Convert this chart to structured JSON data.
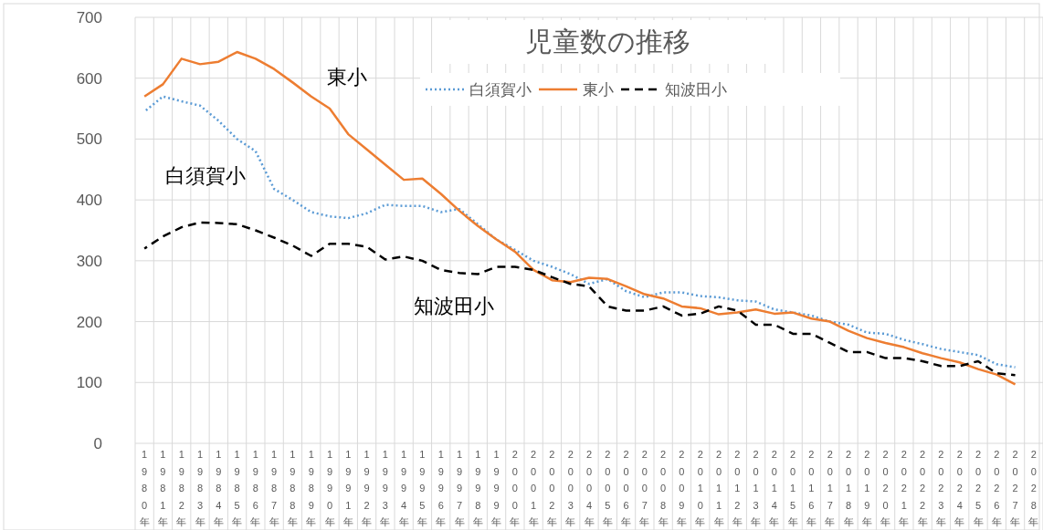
{
  "chart_data": {
    "type": "line",
    "title": "児童数の推移",
    "categories": [
      "1980年",
      "1981年",
      "1982年",
      "1983年",
      "1984年",
      "1985年",
      "1986年",
      "1987年",
      "1988年",
      "1989年",
      "1990年",
      "1991年",
      "1992年",
      "1993年",
      "1994年",
      "1995年",
      "1996年",
      "1997年",
      "1998年",
      "1999年",
      "2000年",
      "2001年",
      "2002年",
      "2003年",
      "2004年",
      "2005年",
      "2006年",
      "2007年",
      "2008年",
      "2009年",
      "2010年",
      "2011年",
      "2012年",
      "2013年",
      "2014年",
      "2015年",
      "2016年",
      "2017年",
      "2018年",
      "2019年",
      "2020年",
      "2021年",
      "2022年",
      "2023年",
      "2024年",
      "2025年",
      "2026年",
      "2027年",
      "2028年"
    ],
    "series": [
      {
        "name": "白須賀小",
        "color": "#5b9bd5",
        "line_style": "dotted",
        "values": [
          545,
          570,
          562,
          555,
          530,
          500,
          480,
          418,
          400,
          380,
          373,
          370,
          378,
          392,
          390,
          390,
          380,
          385,
          360,
          335,
          318,
          300,
          290,
          278,
          262,
          270,
          250,
          240,
          248,
          248,
          242,
          240,
          235,
          233,
          220,
          215,
          210,
          200,
          195,
          182,
          180,
          170,
          163,
          155,
          150,
          145,
          130,
          125,
          null
        ]
      },
      {
        "name": "東小",
        "color": "#ed7d31",
        "line_style": "solid",
        "values": [
          570,
          590,
          632,
          623,
          627,
          643,
          632,
          615,
          593,
          570,
          550,
          508,
          483,
          458,
          433,
          435,
          410,
          382,
          357,
          335,
          315,
          285,
          268,
          265,
          272,
          270,
          258,
          245,
          238,
          225,
          222,
          212,
          215,
          220,
          213,
          215,
          205,
          200,
          185,
          173,
          165,
          158,
          148,
          140,
          133,
          122,
          113,
          97,
          null
        ]
      },
      {
        "name": "知波田小",
        "color": "#000000",
        "line_style": "dashed",
        "values": [
          320,
          340,
          355,
          363,
          362,
          360,
          350,
          338,
          325,
          308,
          328,
          328,
          323,
          302,
          307,
          300,
          285,
          280,
          278,
          290,
          290,
          285,
          273,
          262,
          258,
          225,
          218,
          218,
          225,
          210,
          213,
          225,
          218,
          195,
          195,
          180,
          180,
          165,
          150,
          150,
          140,
          140,
          135,
          127,
          127,
          135,
          115,
          112,
          null
        ]
      }
    ],
    "ylim": [
      0,
      700
    ],
    "yticks": [
      0,
      100,
      200,
      300,
      400,
      500,
      600,
      700
    ],
    "grid": true,
    "legend": "top",
    "marker": "none",
    "annotations": [
      "東小",
      "白須賀小",
      "知波田小"
    ]
  }
}
